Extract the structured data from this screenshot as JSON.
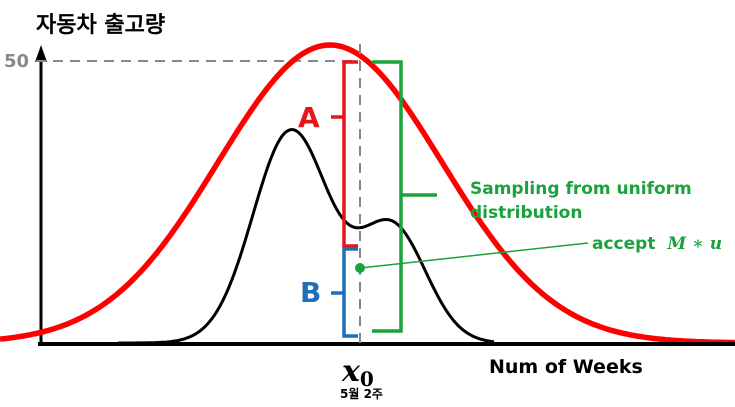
{
  "title": "자동차 출고량",
  "y_tick_label": "50",
  "x_axis_label": "Num of Weeks",
  "x0_symbol": "x",
  "x0_subscript": "0",
  "x0_caption": "5월 2주",
  "label_a": "A",
  "label_b": "B",
  "uniform_note_line1": "Sampling from uniform",
  "uniform_note_line2": "distribution",
  "accept_text": "accept",
  "accept_expr": "M ∗ u",
  "colors": {
    "envelope": "#ff0000",
    "target": "#000000",
    "bracket_a": "#e8141a",
    "bracket_b": "#1f6fb7",
    "bracket_uniform": "#1aa33c",
    "guide": "#888888"
  }
}
